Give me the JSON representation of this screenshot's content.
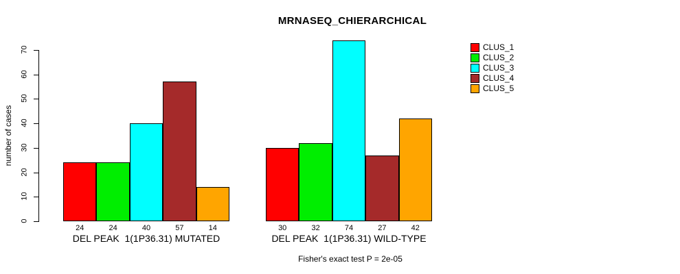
{
  "figure": {
    "title": "MRNASEQ_CHIERARCHICAL",
    "caption": "Fisher's exact test P = 2e-05"
  },
  "chart_data": {
    "type": "bar",
    "title": "MRNASEQ_CHIERARCHICAL",
    "xlabel": "",
    "ylabel": "number of cases",
    "ylim": [
      0,
      74
    ],
    "yticks": [
      0,
      10,
      20,
      30,
      40,
      50,
      60,
      70
    ],
    "grid": false,
    "legend_position": "top-right",
    "legend_labels": [
      "CLUS_1",
      "CLUS_2",
      "CLUS_3",
      "CLUS_4",
      "CLUS_5"
    ],
    "series_colors": [
      "#ff0000",
      "#00ee00",
      "#00ffff",
      "#a52a2a",
      "#ffa500"
    ],
    "groups": [
      {
        "label": "DEL PEAK  1(1P36.31) MUTATED",
        "values": [
          24,
          24,
          40,
          57,
          14
        ]
      },
      {
        "label": "DEL PEAK  1(1P36.31) WILD-TYPE",
        "values": [
          30,
          32,
          74,
          27,
          42
        ]
      }
    ],
    "annotation": "Fisher's exact test P = 2e-05"
  }
}
